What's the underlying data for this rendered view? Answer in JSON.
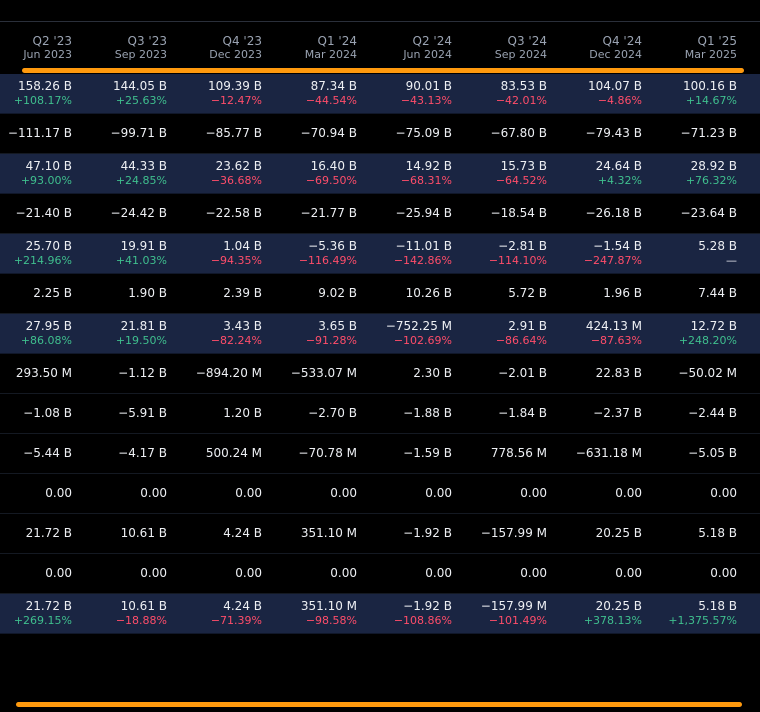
{
  "colors": {
    "accent": "#ff9a0e",
    "positive": "#3fbf8e",
    "negative": "#ff4d6a",
    "row_highlight": "#1a2542"
  },
  "columns": [
    {
      "q": "Q2 '23",
      "date": "Jun 2023"
    },
    {
      "q": "Q3 '23",
      "date": "Sep 2023"
    },
    {
      "q": "Q4 '23",
      "date": "Dec 2023"
    },
    {
      "q": "Q1 '24",
      "date": "Mar 2024"
    },
    {
      "q": "Q2 '24",
      "date": "Jun 2024"
    },
    {
      "q": "Q3 '24",
      "date": "Sep 2024"
    },
    {
      "q": "Q4 '24",
      "date": "Dec 2024"
    },
    {
      "q": "Q1 '25",
      "date": "Mar 2025"
    }
  ],
  "rows": [
    {
      "highlight": true,
      "values": [
        "158.26 B",
        "144.05 B",
        "109.39 B",
        "87.34 B",
        "90.01 B",
        "83.53 B",
        "104.07 B",
        "100.16 B"
      ],
      "changes": [
        "+108.17%",
        "+25.63%",
        "−12.47%",
        "−44.54%",
        "−43.13%",
        "−42.01%",
        "−4.86%",
        "+14.67%"
      ]
    },
    {
      "highlight": false,
      "values": [
        "−111.17 B",
        "−99.71 B",
        "−85.77 B",
        "−70.94 B",
        "−75.09 B",
        "−67.80 B",
        "−79.43 B",
        "−71.23 B"
      ]
    },
    {
      "highlight": true,
      "values": [
        "47.10 B",
        "44.33 B",
        "23.62 B",
        "16.40 B",
        "14.92 B",
        "15.73 B",
        "24.64 B",
        "28.92 B"
      ],
      "changes": [
        "+93.00%",
        "+24.85%",
        "−36.68%",
        "−69.50%",
        "−68.31%",
        "−64.52%",
        "+4.32%",
        "+76.32%"
      ]
    },
    {
      "highlight": false,
      "values": [
        "−21.40 B",
        "−24.42 B",
        "−22.58 B",
        "−21.77 B",
        "−25.94 B",
        "−18.54 B",
        "−26.18 B",
        "−23.64 B"
      ]
    },
    {
      "highlight": true,
      "values": [
        "25.70 B",
        "19.91 B",
        "1.04 B",
        "−5.36 B",
        "−11.01 B",
        "−2.81 B",
        "−1.54 B",
        "5.28 B"
      ],
      "changes": [
        "+214.96%",
        "+41.03%",
        "−94.35%",
        "−116.49%",
        "−142.86%",
        "−114.10%",
        "−247.87%",
        "—"
      ]
    },
    {
      "highlight": false,
      "values": [
        "2.25 B",
        "1.90 B",
        "2.39 B",
        "9.02 B",
        "10.26 B",
        "5.72 B",
        "1.96 B",
        "7.44 B"
      ]
    },
    {
      "highlight": true,
      "values": [
        "27.95 B",
        "21.81 B",
        "3.43 B",
        "3.65 B",
        "−752.25 M",
        "2.91 B",
        "424.13 M",
        "12.72 B"
      ],
      "changes": [
        "+86.08%",
        "+19.50%",
        "−82.24%",
        "−91.28%",
        "−102.69%",
        "−86.64%",
        "−87.63%",
        "+248.20%"
      ]
    },
    {
      "highlight": false,
      "values": [
        "293.50 M",
        "−1.12 B",
        "−894.20 M",
        "−533.07 M",
        "2.30 B",
        "−2.01 B",
        "22.83 B",
        "−50.02 M"
      ]
    },
    {
      "highlight": false,
      "values": [
        "−1.08 B",
        "−5.91 B",
        "1.20 B",
        "−2.70 B",
        "−1.88 B",
        "−1.84 B",
        "−2.37 B",
        "−2.44 B"
      ]
    },
    {
      "highlight": false,
      "values": [
        "−5.44 B",
        "−4.17 B",
        "500.24 M",
        "−70.78 M",
        "−1.59 B",
        "778.56 M",
        "−631.18 M",
        "−5.05 B"
      ]
    },
    {
      "highlight": false,
      "values": [
        "0.00",
        "0.00",
        "0.00",
        "0.00",
        "0.00",
        "0.00",
        "0.00",
        "0.00"
      ]
    },
    {
      "highlight": false,
      "values": [
        "21.72 B",
        "10.61 B",
        "4.24 B",
        "351.10 M",
        "−1.92 B",
        "−157.99 M",
        "20.25 B",
        "5.18 B"
      ]
    },
    {
      "highlight": false,
      "values": [
        "0.00",
        "0.00",
        "0.00",
        "0.00",
        "0.00",
        "0.00",
        "0.00",
        "0.00"
      ]
    },
    {
      "highlight": true,
      "values": [
        "21.72 B",
        "10.61 B",
        "4.24 B",
        "351.10 M",
        "−1.92 B",
        "−157.99 M",
        "20.25 B",
        "5.18 B"
      ],
      "changes": [
        "+269.15%",
        "−18.88%",
        "−71.39%",
        "−98.58%",
        "−108.86%",
        "−101.49%",
        "+378.13%",
        "+1,375.57%"
      ]
    }
  ]
}
